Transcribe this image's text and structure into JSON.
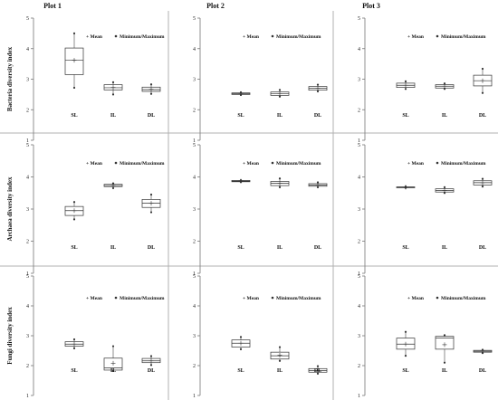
{
  "plot_titles": [
    "Plot 1",
    "Plot 2",
    "Plot 3"
  ],
  "legend": {
    "mean": "Mean",
    "minmax": "Minimum/Maximum"
  },
  "chart_data": [
    {
      "type": "box",
      "row": 0,
      "col": 0,
      "ylabel": "Bacteria diversity index",
      "ylim": [
        1,
        5
      ],
      "yticks": [
        1,
        2,
        3,
        4,
        5
      ],
      "categories": [
        "SL",
        "IL",
        "DL"
      ],
      "boxes": [
        {
          "min": 2.72,
          "q1": 3.15,
          "median": 3.62,
          "q3": 4.02,
          "max": 4.5,
          "mean": 3.62
        },
        {
          "min": 2.5,
          "q1": 2.65,
          "median": 2.72,
          "q3": 2.82,
          "max": 2.9,
          "mean": 2.73
        },
        {
          "min": 2.52,
          "q1": 2.6,
          "median": 2.66,
          "q3": 2.74,
          "max": 2.83,
          "mean": 2.67
        }
      ]
    },
    {
      "type": "box",
      "row": 0,
      "col": 1,
      "ylabel": "",
      "ylim": [
        1,
        5
      ],
      "yticks": [
        1,
        2,
        3,
        4,
        5
      ],
      "categories": [
        "SL",
        "IL",
        "DL"
      ],
      "boxes": [
        {
          "min": 2.48,
          "q1": 2.5,
          "median": 2.53,
          "q3": 2.55,
          "max": 2.57,
          "mean": 2.53
        },
        {
          "min": 2.43,
          "q1": 2.47,
          "median": 2.52,
          "q3": 2.58,
          "max": 2.65,
          "mean": 2.52
        },
        {
          "min": 2.6,
          "q1": 2.64,
          "median": 2.7,
          "q3": 2.76,
          "max": 2.82,
          "mean": 2.7
        }
      ]
    },
    {
      "type": "box",
      "row": 0,
      "col": 2,
      "ylabel": "",
      "ylim": [
        1,
        5
      ],
      "yticks": [
        1,
        2,
        3,
        4,
        5
      ],
      "categories": [
        "SL",
        "IL",
        "DL"
      ],
      "boxes": [
        {
          "min": 2.68,
          "q1": 2.73,
          "median": 2.8,
          "q3": 2.87,
          "max": 2.93,
          "mean": 2.8
        },
        {
          "min": 2.68,
          "q1": 2.71,
          "median": 2.77,
          "q3": 2.82,
          "max": 2.86,
          "mean": 2.77
        },
        {
          "min": 2.55,
          "q1": 2.78,
          "median": 2.95,
          "q3": 3.13,
          "max": 3.34,
          "mean": 2.95
        }
      ]
    },
    {
      "type": "box",
      "row": 1,
      "col": 0,
      "ylabel": "Archaea diversity index",
      "ylim": [
        1,
        5
      ],
      "yticks": [
        1,
        2,
        3,
        4,
        5
      ],
      "categories": [
        "SL",
        "IL",
        "DL"
      ],
      "boxes": [
        {
          "min": 2.68,
          "q1": 2.8,
          "median": 2.95,
          "q3": 3.08,
          "max": 3.22,
          "mean": 2.95
        },
        {
          "min": 3.65,
          "q1": 3.7,
          "median": 3.73,
          "q3": 3.77,
          "max": 3.8,
          "mean": 3.73
        },
        {
          "min": 2.9,
          "q1": 3.05,
          "median": 3.18,
          "q3": 3.3,
          "max": 3.45,
          "mean": 3.18
        }
      ]
    },
    {
      "type": "box",
      "row": 1,
      "col": 1,
      "ylabel": "",
      "ylim": [
        1,
        5
      ],
      "yticks": [
        1,
        2,
        3,
        4,
        5
      ],
      "categories": [
        "SL",
        "IL",
        "DL"
      ],
      "boxes": [
        {
          "min": 3.84,
          "q1": 3.85,
          "median": 3.87,
          "q3": 3.89,
          "max": 3.9,
          "mean": 3.87
        },
        {
          "min": 3.68,
          "q1": 3.73,
          "median": 3.8,
          "q3": 3.86,
          "max": 3.95,
          "mean": 3.8
        },
        {
          "min": 3.68,
          "q1": 3.71,
          "median": 3.75,
          "q3": 3.79,
          "max": 3.83,
          "mean": 3.75
        }
      ]
    },
    {
      "type": "box",
      "row": 1,
      "col": 2,
      "ylabel": "",
      "ylim": [
        1,
        5
      ],
      "yticks": [
        1,
        2,
        3,
        4,
        5
      ],
      "categories": [
        "SL",
        "IL",
        "DL"
      ],
      "boxes": [
        {
          "min": 3.66,
          "q1": 3.67,
          "median": 3.68,
          "q3": 3.69,
          "max": 3.7,
          "mean": 3.68
        },
        {
          "min": 3.5,
          "q1": 3.53,
          "median": 3.58,
          "q3": 3.63,
          "max": 3.68,
          "mean": 3.58
        },
        {
          "min": 3.7,
          "q1": 3.75,
          "median": 3.82,
          "q3": 3.88,
          "max": 3.94,
          "mean": 3.82
        }
      ]
    },
    {
      "type": "box",
      "row": 2,
      "col": 0,
      "ylabel": "Fungi diversity index",
      "ylim": [
        1,
        5
      ],
      "yticks": [
        1,
        2,
        3,
        4,
        5
      ],
      "categories": [
        "SL",
        "IL",
        "DL"
      ],
      "boxes": [
        {
          "min": 2.58,
          "q1": 2.65,
          "median": 2.72,
          "q3": 2.8,
          "max": 2.88,
          "mean": 2.72
        },
        {
          "min": 1.82,
          "q1": 1.85,
          "median": 1.92,
          "q3": 2.25,
          "max": 2.65,
          "mean": 2.08
        },
        {
          "min": 2.02,
          "q1": 2.1,
          "median": 2.16,
          "q3": 2.24,
          "max": 2.32,
          "mean": 2.16
        }
      ]
    },
    {
      "type": "box",
      "row": 2,
      "col": 1,
      "ylabel": "",
      "ylim": [
        1,
        5
      ],
      "yticks": [
        1,
        2,
        3,
        4,
        5
      ],
      "categories": [
        "SL",
        "IL",
        "DL"
      ],
      "boxes": [
        {
          "min": 2.55,
          "q1": 2.62,
          "median": 2.75,
          "q3": 2.86,
          "max": 2.96,
          "mean": 2.75
        },
        {
          "min": 2.16,
          "q1": 2.22,
          "median": 2.33,
          "q3": 2.45,
          "max": 2.62,
          "mean": 2.35
        },
        {
          "min": 1.73,
          "q1": 1.78,
          "median": 1.83,
          "q3": 1.9,
          "max": 1.98,
          "mean": 1.83
        }
      ]
    },
    {
      "type": "box",
      "row": 2,
      "col": 2,
      "ylabel": "",
      "ylim": [
        1,
        5
      ],
      "yticks": [
        1,
        2,
        3,
        4,
        5
      ],
      "categories": [
        "SL",
        "IL",
        "DL"
      ],
      "boxes": [
        {
          "min": 2.33,
          "q1": 2.55,
          "median": 2.72,
          "q3": 2.92,
          "max": 3.13,
          "mean": 2.72
        },
        {
          "min": 2.1,
          "q1": 2.55,
          "median": 2.92,
          "q3": 2.98,
          "max": 3.02,
          "mean": 2.7
        },
        {
          "min": 2.42,
          "q1": 2.45,
          "median": 2.48,
          "q3": 2.51,
          "max": 2.53,
          "mean": 2.48
        }
      ]
    }
  ]
}
